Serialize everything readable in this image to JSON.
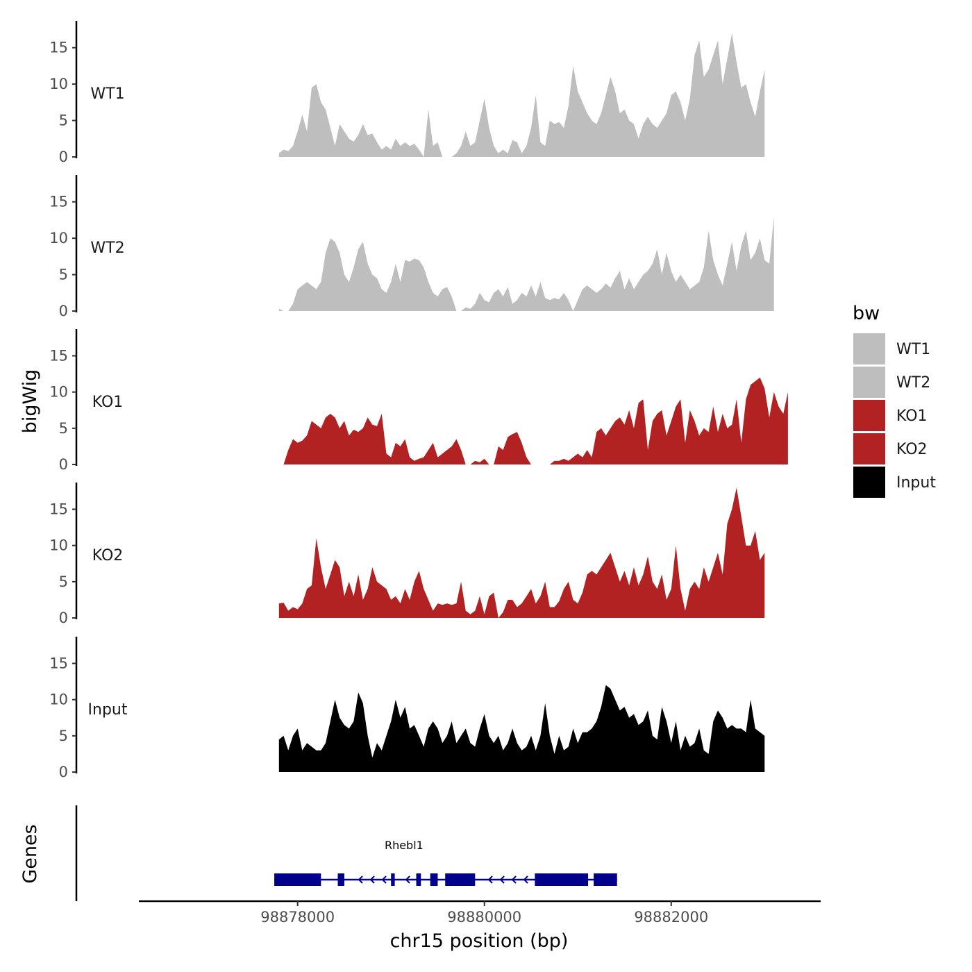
{
  "chart_data": {
    "type": "area",
    "xlabel": "chr15 position (bp)",
    "ylabel": "bigWig",
    "genes_label": "Genes",
    "xlim": [
      98876300,
      98883600
    ],
    "ylim": [
      0,
      18.5
    ],
    "x_ticks": [
      98878000,
      98880000,
      98882000
    ],
    "x_tick_labels": [
      "98878000",
      "98880000",
      "98882000"
    ],
    "y_ticks": [
      0,
      5,
      10,
      15
    ],
    "y_tick_labels": [
      "0",
      "5",
      "10",
      "15"
    ],
    "legend": {
      "title": "bw",
      "placement": "right",
      "entries": [
        {
          "label": "WT1",
          "color": "#bebebe"
        },
        {
          "label": "WT2",
          "color": "#bebebe"
        },
        {
          "label": "KO1",
          "color": "#b22222"
        },
        {
          "label": "KO2",
          "color": "#b22222"
        },
        {
          "label": "Input",
          "color": "#000000"
        }
      ]
    },
    "x_start": 98877800,
    "x_step": 50,
    "series": [
      {
        "name": "WT1",
        "color": "#bebebe",
        "values": [
          0.5,
          1,
          0.8,
          1.5,
          3.5,
          5.8,
          3.5,
          9.5,
          10,
          7.5,
          6.5,
          4,
          1.5,
          4.5,
          3.5,
          2.5,
          2.1,
          3,
          4.5,
          3,
          3.2,
          2,
          1,
          1.5,
          1,
          2.5,
          1.5,
          2,
          1.5,
          1.8,
          1,
          0,
          6.5,
          1.5,
          2,
          0,
          0,
          0,
          0.5,
          1.5,
          3.5,
          1.5,
          2,
          5,
          8,
          4,
          1.5,
          0.5,
          1,
          0.5,
          2.3,
          2,
          0.5,
          1.5,
          4,
          8.5,
          2,
          1.5,
          5,
          4.5,
          4.8,
          4,
          7,
          12.5,
          9,
          7.5,
          6,
          5,
          4.5,
          6,
          8.5,
          11,
          9,
          6,
          6.5,
          5,
          4.5,
          2.5,
          4.5,
          5.5,
          4.5,
          4,
          5,
          6,
          8.5,
          9,
          7.5,
          5,
          8,
          14,
          16,
          11,
          12,
          14,
          16,
          10,
          13.5,
          17,
          13,
          9.5,
          10,
          7.5,
          5.5,
          9,
          12
        ]
      },
      {
        "name": "WT2",
        "color": "#bebebe",
        "values": [
          0.3,
          0,
          0,
          1,
          3,
          3.5,
          4,
          3.5,
          3,
          4,
          8,
          10,
          9.5,
          8,
          5,
          4,
          6,
          8.5,
          9.5,
          6.5,
          5,
          4.5,
          3,
          2.5,
          4,
          6.5,
          4,
          7,
          6.8,
          7.2,
          7,
          6,
          4,
          2.5,
          2,
          3,
          3.3,
          2,
          0,
          0,
          0.5,
          0.3,
          1,
          2.5,
          1.5,
          1.2,
          2.5,
          3,
          2,
          3.3,
          1,
          1.5,
          2.5,
          2,
          3.5,
          2,
          4,
          1.8,
          1.5,
          1.8,
          1.6,
          2.5,
          1.5,
          0,
          1.5,
          3,
          3.5,
          3,
          2.5,
          3,
          3.8,
          3.2,
          4.5,
          5.5,
          3,
          4.5,
          3,
          4,
          5,
          5.5,
          6.5,
          8.5,
          5,
          8,
          5.5,
          4,
          5,
          4,
          3,
          3.5,
          4,
          6,
          11,
          7,
          5,
          3.5,
          6.5,
          9.5,
          5.5,
          9,
          11,
          7,
          8,
          10,
          7,
          6.5,
          13
        ]
      },
      {
        "name": "KO1",
        "color": "#b22222",
        "values": [
          0,
          0,
          2,
          3.5,
          3,
          3.3,
          4,
          6,
          5.5,
          5,
          6.5,
          7,
          6.5,
          5,
          6,
          4,
          4.8,
          4.5,
          5,
          6.5,
          5.5,
          5.3,
          7,
          1.5,
          1,
          3,
          2.5,
          3.5,
          1,
          0.5,
          0.8,
          1,
          2,
          3,
          1,
          1.5,
          2,
          2.5,
          3.5,
          2,
          0,
          0,
          0.5,
          0.3,
          0.8,
          0,
          0,
          2.5,
          2,
          3.8,
          4.2,
          4.5,
          3,
          1,
          0,
          0,
          0,
          0,
          0,
          0.5,
          0.5,
          0.8,
          0.5,
          1,
          1.5,
          1,
          2,
          1,
          4.5,
          5,
          4,
          5,
          6,
          6.5,
          5.5,
          7.5,
          5,
          8.5,
          9,
          2,
          6,
          7,
          7.5,
          4,
          6,
          8,
          9,
          3,
          7.5,
          6,
          4,
          5,
          4.5,
          8,
          4.5,
          7,
          5,
          5.5,
          9,
          3,
          9,
          11,
          11.5,
          12,
          10.5,
          6.5,
          10,
          8,
          7,
          10
        ]
      },
      {
        "name": "KO2",
        "color": "#b22222",
        "values": [
          2,
          2.1,
          1,
          1.5,
          1.2,
          2,
          4,
          4.5,
          11,
          7,
          4,
          6,
          8,
          7,
          3,
          5,
          3,
          6,
          2.5,
          4,
          7,
          5,
          4.5,
          4,
          2.5,
          3,
          2,
          4,
          2.5,
          5,
          6.5,
          4,
          2.5,
          1,
          2,
          1.8,
          2,
          1.8,
          2,
          5,
          1,
          0.5,
          1,
          3,
          0.5,
          3,
          3.5,
          0,
          0.8,
          2.5,
          2.5,
          1.5,
          2,
          3,
          4,
          2,
          3,
          5,
          1.5,
          1.5,
          2.3,
          4,
          5,
          2.5,
          2,
          3.5,
          6,
          6.5,
          6,
          7,
          8,
          9,
          7,
          5,
          6.5,
          4.5,
          7,
          4.5,
          6,
          8.5,
          5,
          4,
          6,
          2.5,
          4,
          10,
          4,
          1,
          4,
          5,
          4,
          7,
          5,
          7,
          9,
          6,
          13,
          15,
          18,
          14,
          10,
          10,
          12,
          8,
          9
        ]
      },
      {
        "name": "Input",
        "color": "#000000",
        "values": [
          4.5,
          5,
          3,
          5,
          6,
          3,
          4,
          3.5,
          3,
          3,
          4,
          7,
          10,
          7.5,
          6.5,
          6,
          7,
          11,
          9.5,
          5,
          2,
          4,
          3,
          5,
          7,
          10,
          7.5,
          9,
          6,
          6.5,
          5,
          3.5,
          6,
          7,
          6,
          4,
          5,
          7,
          4,
          5,
          6,
          4,
          3.5,
          6,
          8,
          5,
          4,
          5,
          3,
          4,
          6,
          4,
          3,
          3.5,
          5,
          3,
          5,
          9.5,
          5,
          2.5,
          5,
          3,
          3.5,
          6,
          4,
          5.5,
          5.5,
          6,
          7,
          9,
          12,
          11.5,
          10,
          8.5,
          9,
          7.5,
          8,
          6.5,
          7,
          8.5,
          5,
          4.5,
          9,
          7,
          4,
          7,
          3,
          5,
          3.5,
          4,
          6,
          3,
          2.5,
          7,
          8.5,
          7.5,
          6,
          6.5,
          6,
          6,
          5.5,
          10,
          6,
          5.5,
          5
        ]
      }
    ],
    "genes": [
      {
        "name": "Rhebl1",
        "color": "#00008b",
        "strand": "-",
        "start": 98877750,
        "end": 98881420,
        "exons": [
          [
            98877750,
            98878250
          ],
          [
            98878430,
            98878500
          ],
          [
            98879000,
            98879040
          ],
          [
            98879270,
            98879320
          ],
          [
            98879420,
            98879500
          ],
          [
            98879580,
            98879900
          ],
          [
            98880540,
            98881110
          ],
          [
            98881170,
            98881420
          ]
        ]
      }
    ]
  }
}
